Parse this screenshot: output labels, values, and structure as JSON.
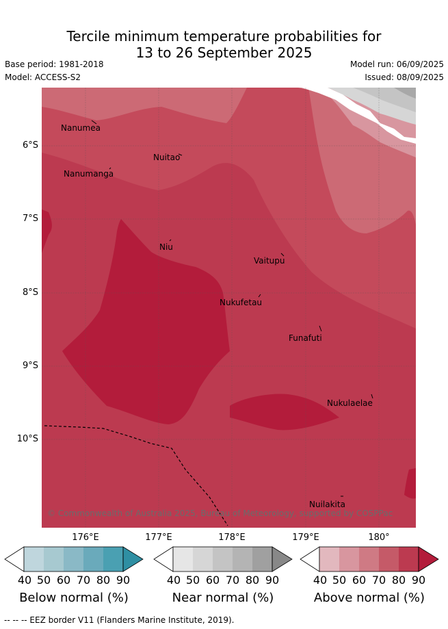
{
  "title_line1": "Tercile minimum temperature probabilities for",
  "title_line2": "13 to 26 September 2025",
  "base_period": "Base period: 1981-2018",
  "model": "Model: ACCESS-S2",
  "model_run": "Model run: 06/09/2025",
  "issued": "Issued: 08/09/2025",
  "lat_labels": [
    "6°S",
    "7°S",
    "8°S",
    "9°S",
    "10°S"
  ],
  "lon_labels": [
    "176°E",
    "177°E",
    "178°E",
    "179°E",
    "180°"
  ],
  "places": {
    "nanumea": "Nanumea",
    "nuitao": "Nuitao",
    "nanumanga": "Nanumanga",
    "niu": "Niu",
    "vaitupu": "Vaitupu",
    "nukufetau": "Nukufetau",
    "funafuti": "Funafuti",
    "nukulaelae": "Nukulaelae",
    "nuilakita": "Nuilakita"
  },
  "copyright": "© Commonwealth of Australia 2025, Bureau of Meteorology, supported by COSPPac",
  "colorbars": {
    "below": {
      "title": "Below normal (%)",
      "ticks": [
        "40",
        "50",
        "60",
        "70",
        "80",
        "90"
      ],
      "colors": [
        "#ffffff",
        "#bfd6dd",
        "#a7c9d0",
        "#8ab9c6",
        "#6aaabb",
        "#4aa0b2",
        "#2f8fa3"
      ]
    },
    "near": {
      "title": "Near normal (%)",
      "ticks": [
        "40",
        "50",
        "60",
        "70",
        "80",
        "90"
      ],
      "colors": [
        "#ffffff",
        "#e6e6e6",
        "#d6d6d6",
        "#c4c4c4",
        "#b4b4b4",
        "#a0a0a0",
        "#888888"
      ]
    },
    "above": {
      "title": "Above normal (%)",
      "ticks": [
        "40",
        "50",
        "60",
        "70",
        "80",
        "90"
      ],
      "colors": [
        "#ffffff",
        "#e2b8be",
        "#d8969f",
        "#cf7a84",
        "#c55a68",
        "#bc3a50",
        "#b31c3b"
      ]
    }
  },
  "map_colors": {
    "above_50_60": "#d8969f",
    "above_60_70": "#cf6e79",
    "above_70_80": "#c44a5b",
    "above_80_90": "#bc3a50",
    "above_90": "#b31c3b",
    "near_50_60": "#d6d6d6",
    "near_60_70": "#c4c4c4",
    "near_70_80": "#a8a8a8"
  },
  "footer": "--  --  -- EEZ border V11 (Flanders Marine Institute, 2019)."
}
